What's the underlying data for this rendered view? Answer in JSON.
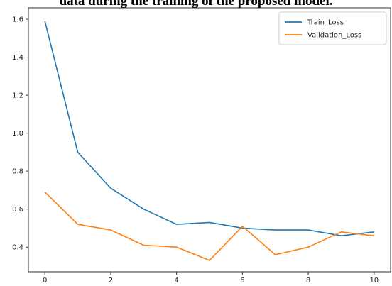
{
  "figure_caption": "data during the training of the proposed model.",
  "colors": {
    "train": "#1f77b4",
    "validation": "#ff7f0e",
    "axis": "#333333",
    "background": "#ffffff"
  },
  "chart_data": {
    "type": "line",
    "title": "",
    "xlabel": "",
    "ylabel": "",
    "x": [
      0,
      1,
      2,
      3,
      4,
      5,
      6,
      7,
      8,
      9,
      10
    ],
    "xlim": [
      -0.5,
      10.5
    ],
    "ylim": [
      0.27,
      1.66
    ],
    "xticks": [
      0,
      2,
      4,
      6,
      8,
      10
    ],
    "yticks": [
      0.4,
      0.6,
      0.8,
      1.0,
      1.2,
      1.4,
      1.6
    ],
    "ytick_labels": [
      "0.4",
      "0.6",
      "0.8",
      "1.0",
      "1.2",
      "1.4",
      "1.6"
    ],
    "grid": false,
    "legend_position": "top-right",
    "series": [
      {
        "name": "Train_Loss",
        "color": "#1f77b4",
        "values": [
          1.59,
          0.9,
          0.71,
          0.6,
          0.52,
          0.53,
          0.5,
          0.49,
          0.49,
          0.46,
          0.48
        ]
      },
      {
        "name": "Validation_Loss",
        "color": "#ff7f0e",
        "values": [
          0.69,
          0.52,
          0.49,
          0.41,
          0.4,
          0.33,
          0.51,
          0.36,
          0.4,
          0.48,
          0.46
        ]
      }
    ]
  }
}
